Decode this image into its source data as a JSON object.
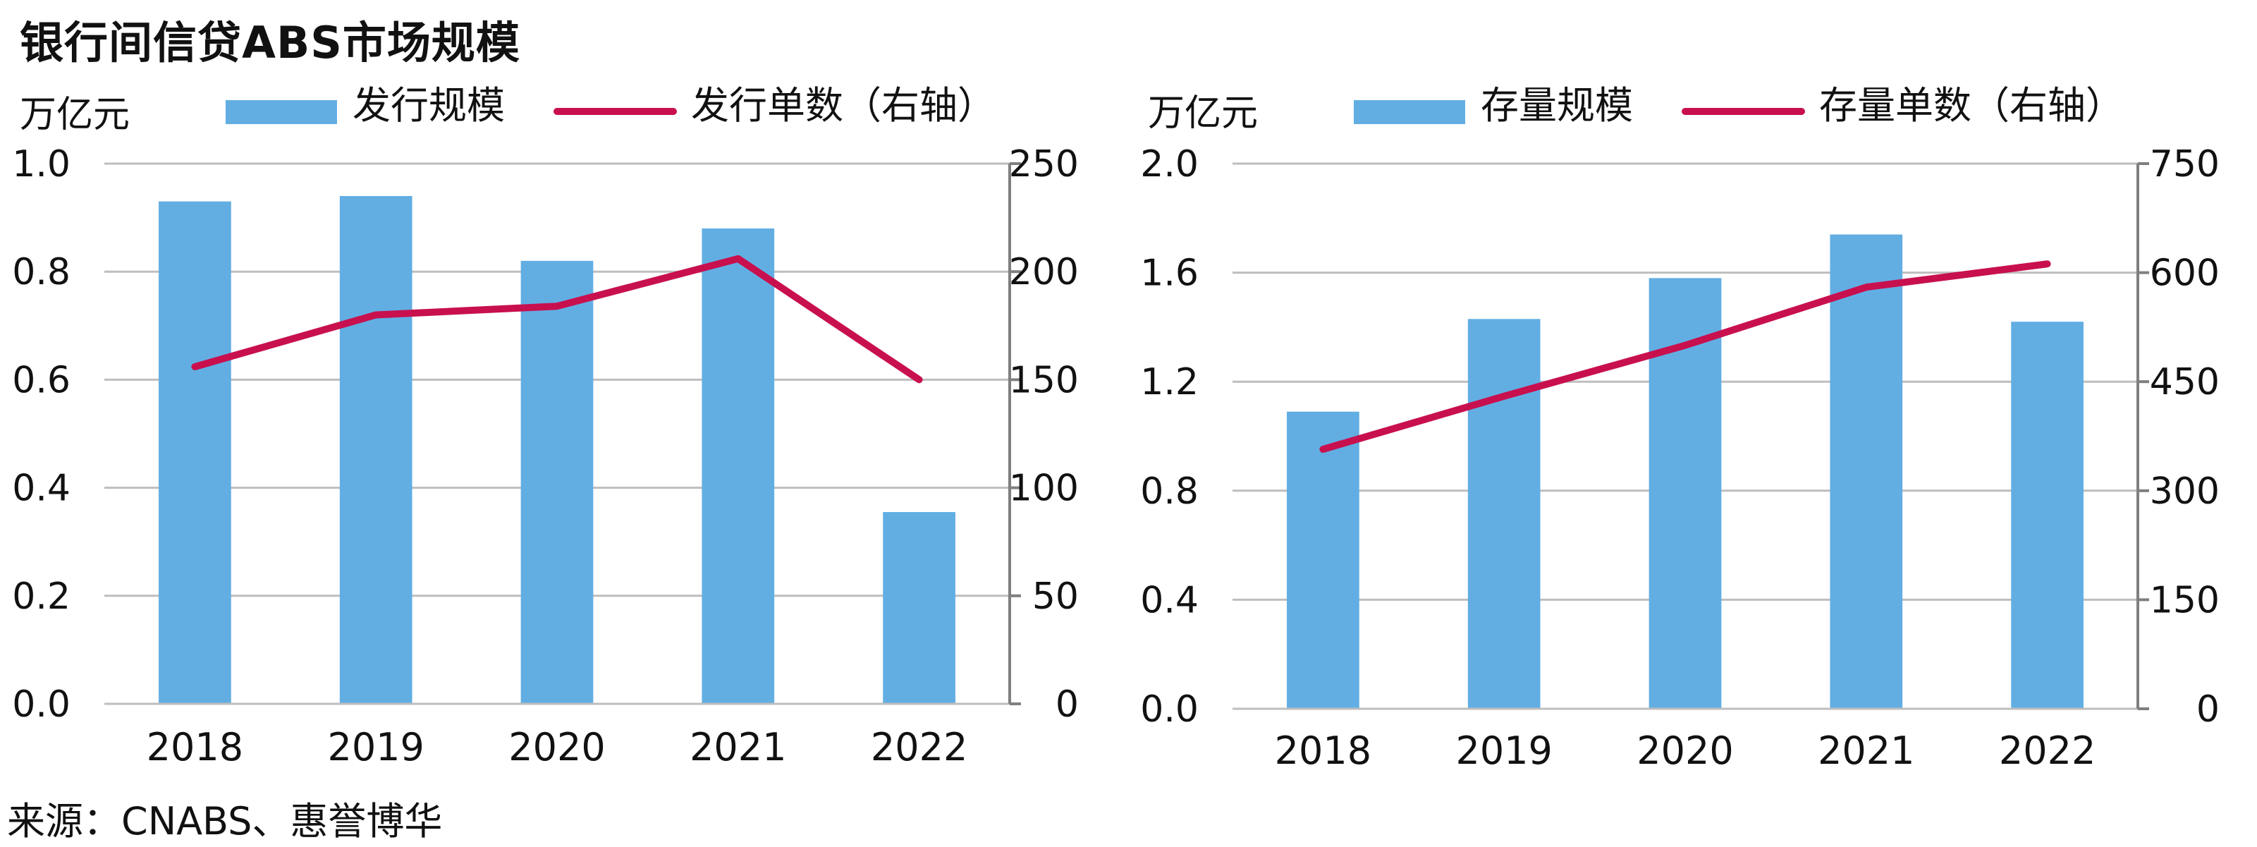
{
  "title": "银行间信贷ABS市场规模",
  "source": "来源：CNABS、惠誉博华",
  "colors": {
    "bar": "#62AEE3",
    "line": "#C8104F",
    "grid": "#BEBEBE",
    "axis": "#7F7F7F"
  },
  "chart_data": [
    {
      "type": "bar",
      "unit_label": "万亿元",
      "categories": [
        "2018",
        "2019",
        "2020",
        "2021",
        "2022"
      ],
      "series": [
        {
          "name": "发行规模",
          "type": "bar",
          "axis": "left",
          "values": [
            0.93,
            0.94,
            0.82,
            0.88,
            0.355
          ]
        },
        {
          "name": "发行单数（右轴）",
          "type": "line",
          "axis": "right",
          "values": [
            156,
            180,
            184,
            206,
            150
          ]
        }
      ],
      "y_left": {
        "range": [
          0,
          1.0
        ],
        "ticks": [
          "0.0",
          "0.2",
          "0.4",
          "0.6",
          "0.8",
          "1.0"
        ]
      },
      "y_right": {
        "range": [
          0,
          250
        ],
        "ticks": [
          "0",
          "50",
          "100",
          "150",
          "200",
          "250"
        ]
      },
      "grid": true,
      "legend": "top"
    },
    {
      "type": "bar",
      "unit_label": "万亿元",
      "categories": [
        "2018",
        "2019",
        "2020",
        "2021",
        "2022"
      ],
      "series": [
        {
          "name": "存量规模",
          "type": "bar",
          "axis": "left",
          "values": [
            1.09,
            1.43,
            1.58,
            1.74,
            1.42
          ]
        },
        {
          "name": "存量单数（右轴）",
          "type": "line",
          "axis": "right",
          "values": [
            357,
            430,
            500,
            580,
            612
          ]
        }
      ],
      "y_left": {
        "range": [
          0,
          2.0
        ],
        "ticks": [
          "0.0",
          "0.4",
          "0.8",
          "1.2",
          "1.6",
          "2.0"
        ]
      },
      "y_right": {
        "range": [
          0,
          750
        ],
        "ticks": [
          "0",
          "150",
          "300",
          "450",
          "600",
          "750"
        ]
      },
      "grid": true,
      "legend": "top"
    }
  ]
}
